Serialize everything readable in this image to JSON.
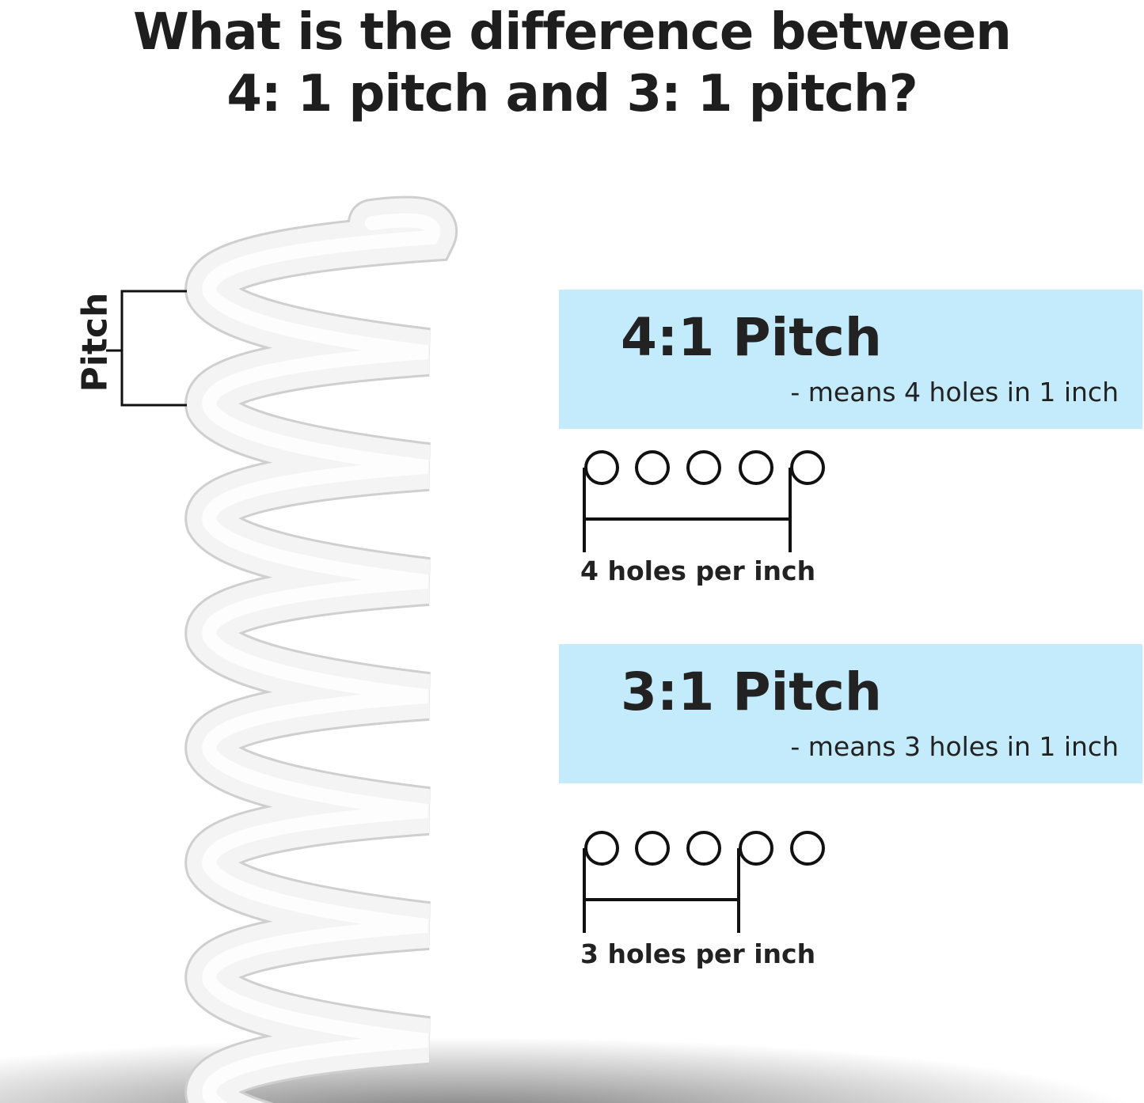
{
  "title": {
    "line1": "What is the difference between",
    "line2": "4: 1 pitch and 3: 1 pitch?"
  },
  "spring": {
    "pitch_label": "Pitch"
  },
  "pitch_4_1": {
    "heading": "4:1 Pitch",
    "description": "- means 4 holes in 1 inch",
    "caption": "4 holes per inch",
    "holes_per_inch": 4
  },
  "pitch_3_1": {
    "heading": "3:1 Pitch",
    "description": "- means 3 holes in 1 inch",
    "caption": "3 holes per inch",
    "holes_per_inch": 3
  },
  "colors": {
    "box_background": "#c4ebfb",
    "text": "#1e1e1e",
    "spring": "#f4f4f4"
  }
}
